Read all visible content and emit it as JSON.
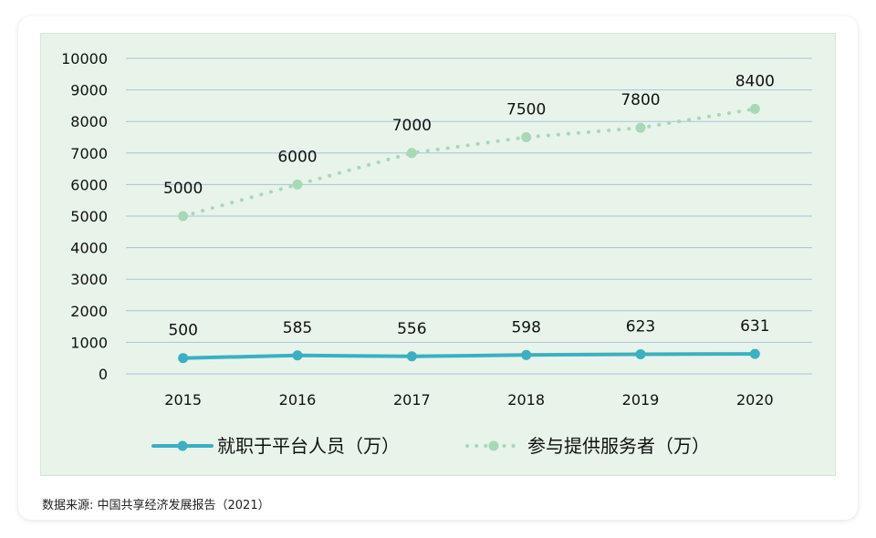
{
  "chart_data": {
    "type": "line",
    "categories": [
      "2015",
      "2016",
      "2017",
      "2018",
      "2019",
      "2020"
    ],
    "ylim": [
      0,
      10000
    ],
    "yticks": [
      0,
      1000,
      2000,
      3000,
      4000,
      5000,
      6000,
      7000,
      8000,
      9000,
      10000
    ],
    "grid": true,
    "legend_position": "bottom",
    "series": [
      {
        "name": "就职于平台人员（万）",
        "values": [
          500,
          585,
          556,
          598,
          623,
          631
        ],
        "color": "#3bb0c2",
        "style": "solid"
      },
      {
        "name": "参与提供服务者（万）",
        "values": [
          5000,
          6000,
          7000,
          7500,
          7800,
          8400
        ],
        "color": "#a8d8b6",
        "style": "dotted"
      }
    ]
  },
  "source": "数据来源: 中国共享经济发展报告（2021）"
}
